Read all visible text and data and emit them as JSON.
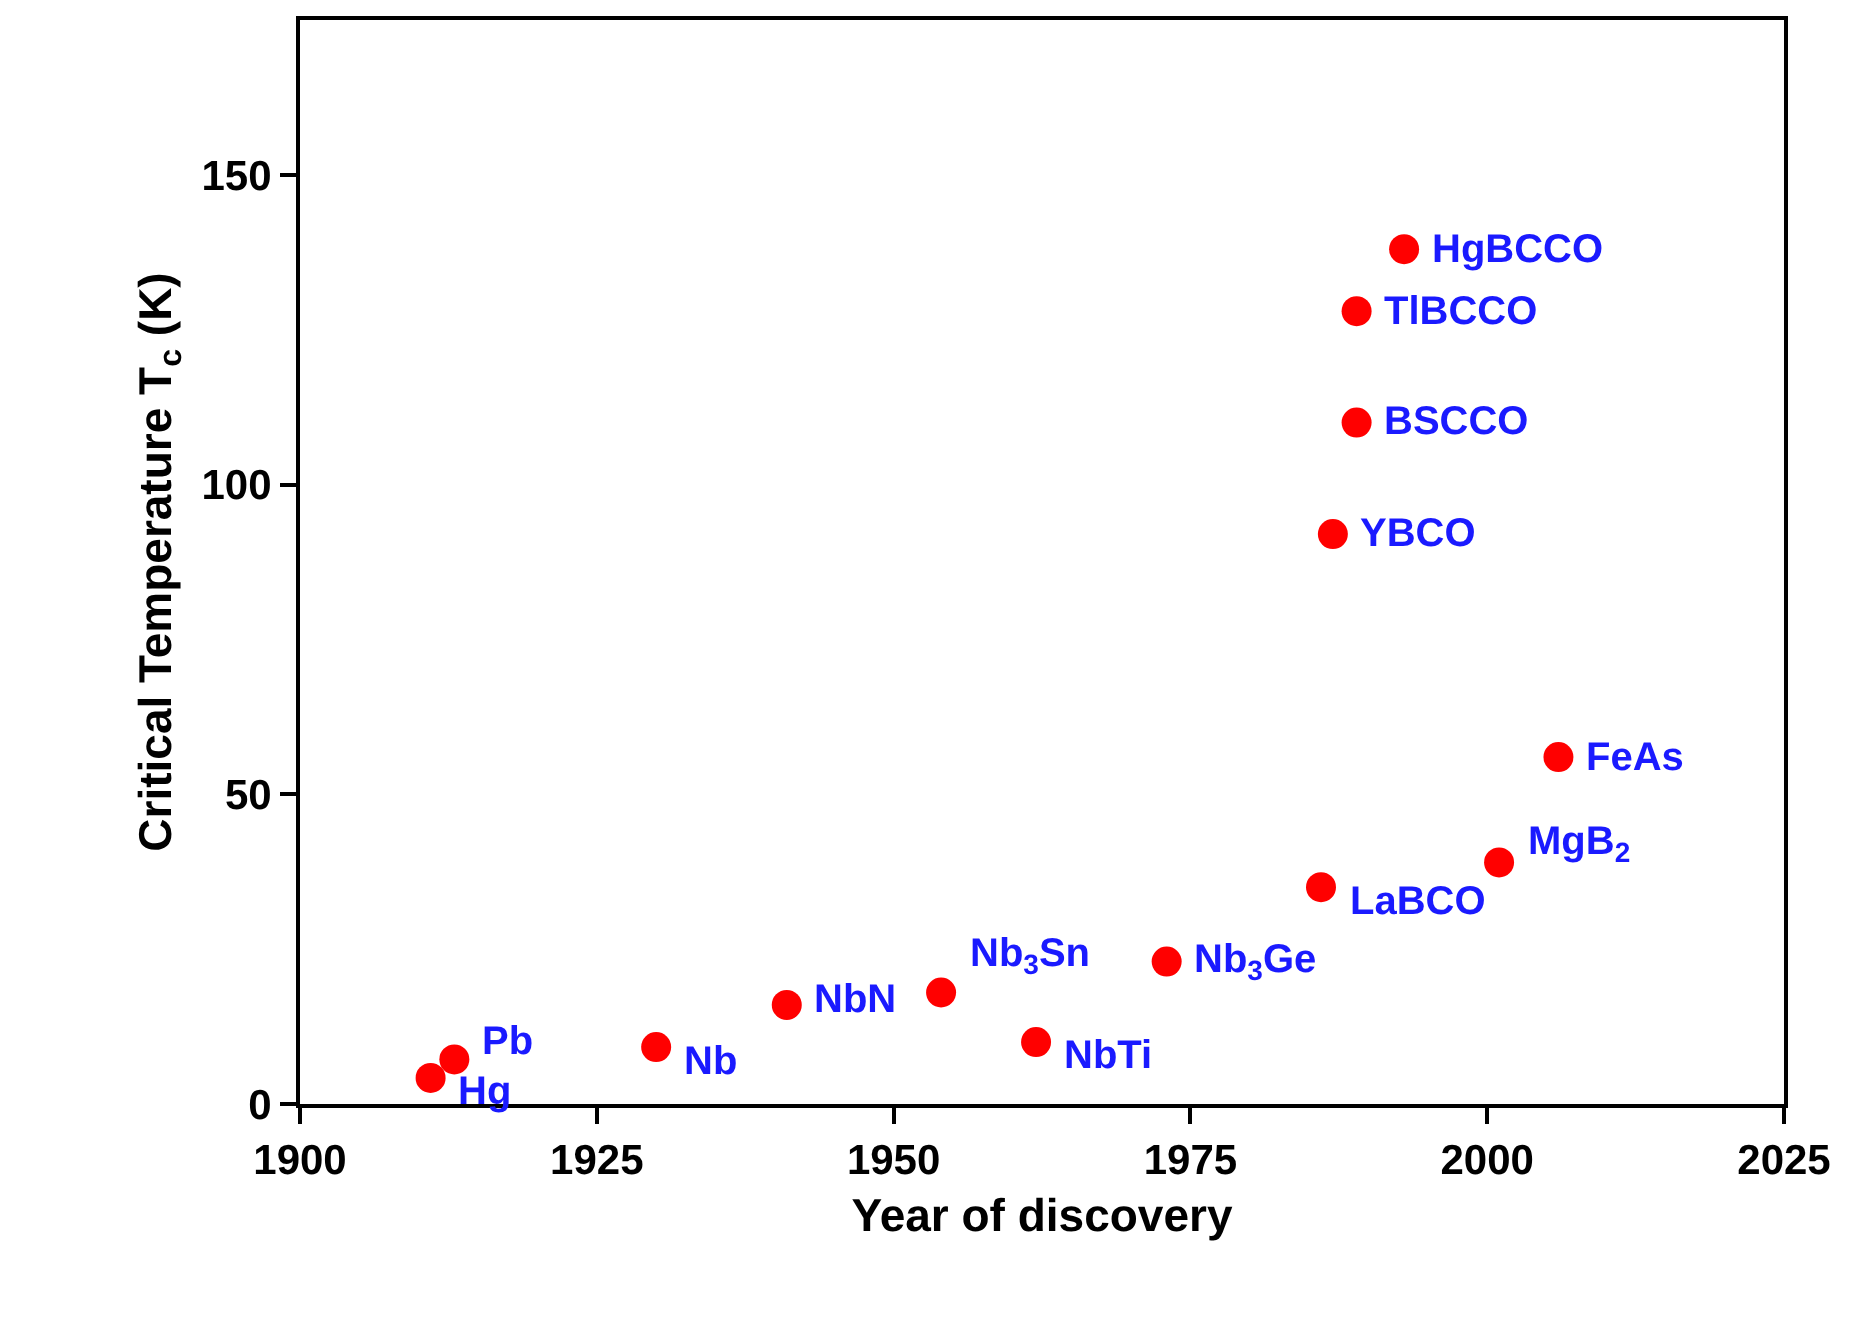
{
  "chart_data": {
    "type": "scatter",
    "xlabel": "Year of discovery",
    "ylabel": "Critical Temperature T$_{c}$ (K)",
    "x": [
      1911,
      1913,
      1930,
      1941,
      1954,
      1962,
      1973,
      1986,
      1987,
      1989,
      1989,
      1993,
      2001,
      2006
    ],
    "values": [
      4.2,
      7.2,
      9.2,
      16,
      18,
      10,
      23,
      35,
      92,
      110,
      128,
      138,
      39,
      56
    ],
    "color": "#ff0000",
    "marker": "circle",
    "xlim": [
      1900,
      2025
    ],
    "xticks": [
      1900,
      1925,
      1950,
      1975,
      2000,
      2025
    ],
    "ylim": [
      0,
      175
    ],
    "yticks": [
      0,
      50,
      100,
      150
    ],
    "annotations": [
      {
        "text": "Hg",
        "x": 1911,
        "y": 4.2
      },
      {
        "text": "Pb",
        "x": 1913,
        "y": 7.2
      },
      {
        "text": "Nb",
        "x": 1930,
        "y": 9.2
      },
      {
        "text": "NbN",
        "x": 1941,
        "y": 16
      },
      {
        "text": "Nb$_{3}$Sn",
        "x": 1954,
        "y": 18
      },
      {
        "text": "NbTi",
        "x": 1962,
        "y": 10
      },
      {
        "text": "Nb$_{3}$Ge",
        "x": 1973,
        "y": 23
      },
      {
        "text": "LaBCO",
        "x": 1986,
        "y": 35
      },
      {
        "text": "YBCO",
        "x": 1987,
        "y": 92
      },
      {
        "text": "BSCCO",
        "x": 1989,
        "y": 110
      },
      {
        "text": "TlBCCO",
        "x": 1989,
        "y": 128
      },
      {
        "text": "HgBCCO",
        "x": 1993,
        "y": 138
      },
      {
        "text": "MgB$_{2}$",
        "x": 2001,
        "y": 39
      },
      {
        "text": "FeAs",
        "x": 2006,
        "y": 56
      }
    ]
  }
}
